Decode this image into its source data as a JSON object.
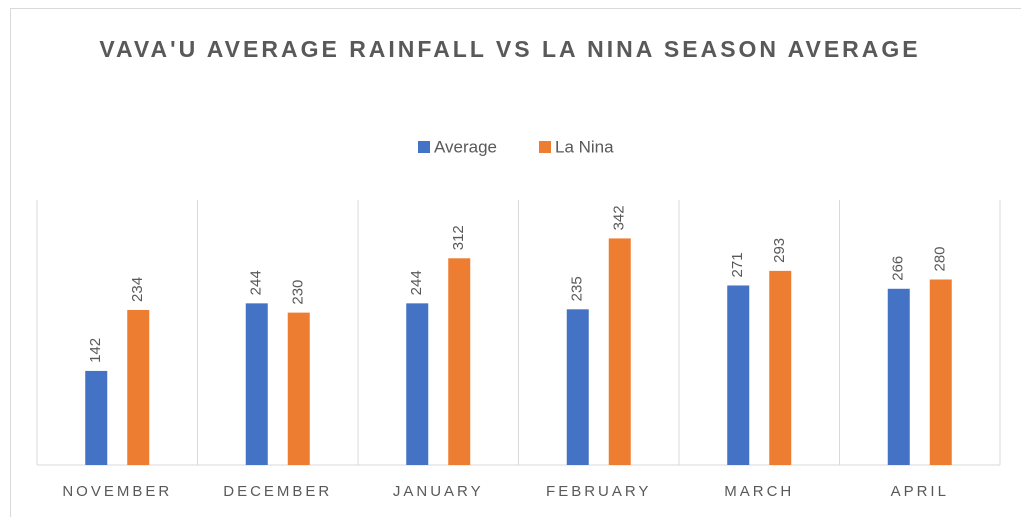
{
  "chart_data": {
    "type": "bar",
    "title": "VAVA'U AVERAGE RAINFALL VS LA NINA SEASON AVERAGE",
    "categories": [
      "NOVEMBER",
      "DECEMBER",
      "JANUARY",
      "FEBRUARY",
      "MARCH",
      "APRIL"
    ],
    "series": [
      {
        "name": "Average",
        "color": "#4472c4",
        "values": [
          142,
          244,
          244,
          235,
          271,
          266
        ]
      },
      {
        "name": "La Nina",
        "color": "#ed7d31",
        "values": [
          234,
          230,
          312,
          342,
          293,
          280
        ]
      }
    ],
    "ylim": [
      0,
      400
    ],
    "legend": "top"
  }
}
